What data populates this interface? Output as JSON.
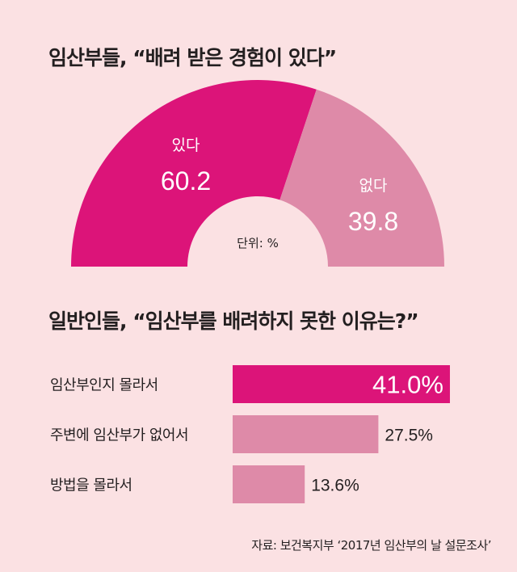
{
  "title_top": "임산부들, “배려 받은 경험이 있다”",
  "title_bottom": "일반인들, “임산부를 배려하지 못한 이유는?”",
  "unit_label": "단위: %",
  "source": "자료: 보건복지부 ‘2017년 임산부의 날 설문조사’",
  "colors": {
    "background": "#fbe1e3",
    "primary": "#dc1479",
    "secondary": "#de8aa8"
  },
  "chart_data": [
    {
      "type": "pie",
      "style": "half-donut",
      "categories": [
        "있다",
        "없다"
      ],
      "values": [
        60.2,
        39.8
      ],
      "value_labels": [
        "60.2",
        "39.8"
      ]
    },
    {
      "type": "bar",
      "orientation": "horizontal",
      "categories": [
        "임산부인지 몰라서",
        "주변에 임산부가 없어서",
        "방법을 몰라서"
      ],
      "values": [
        41.0,
        27.5,
        13.6
      ],
      "value_labels": [
        "41.0%",
        "27.5%",
        "13.6%"
      ]
    }
  ]
}
